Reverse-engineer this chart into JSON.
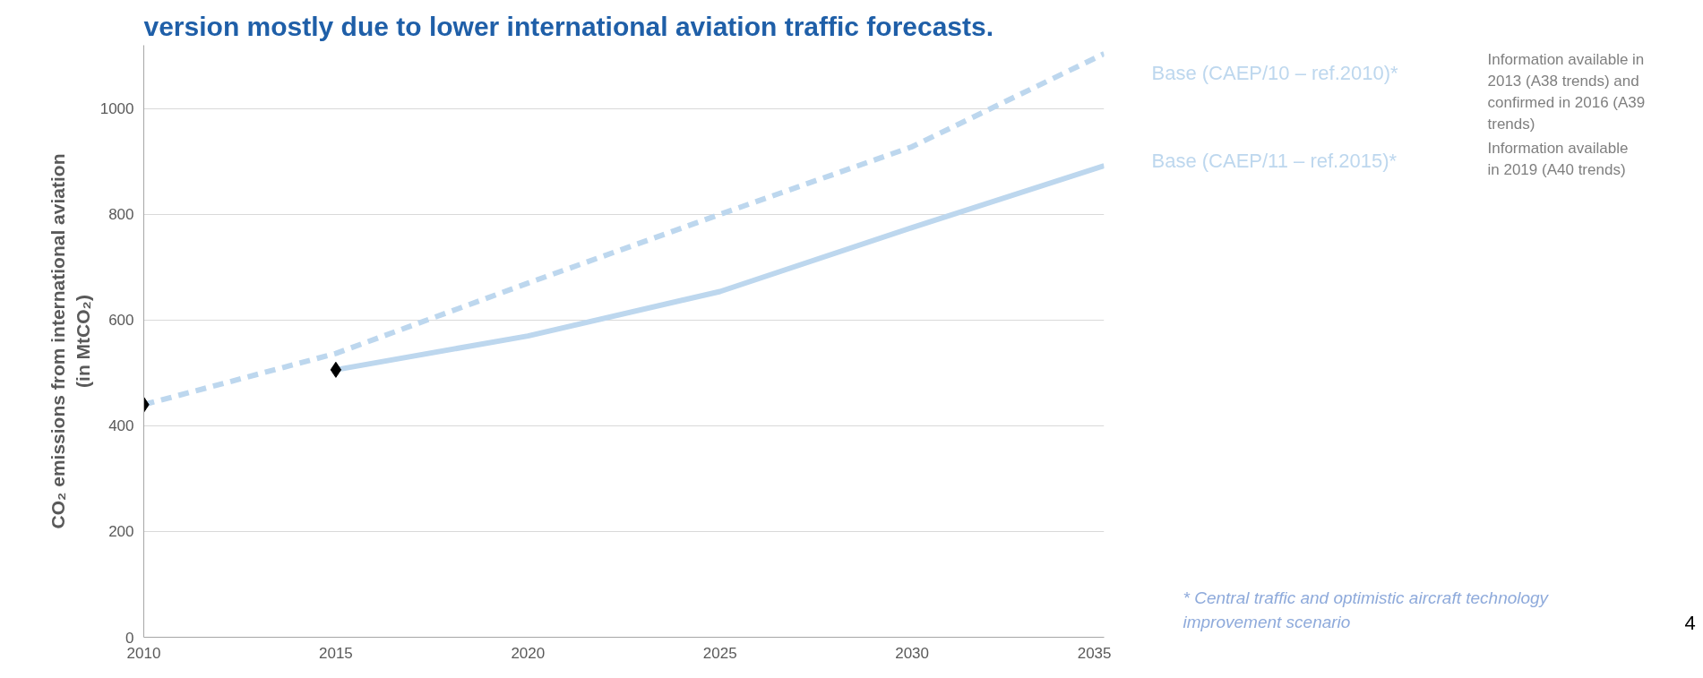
{
  "chart_data": {
    "type": "line",
    "title": "version mostly due to lower international aviation traffic forecasts.",
    "ylabel": "CO₂ emissions from international aviation\n(in MtCO₂)",
    "xlim": [
      2010,
      2035
    ],
    "xticks": [
      2010,
      2015,
      2020,
      2025,
      2030,
      2035
    ],
    "ylim": [
      0,
      1120
    ],
    "yticks": [
      0,
      200,
      400,
      600,
      800,
      1000
    ],
    "grid": "y",
    "series": [
      {
        "name": "Base (CAEP/10 – ref.2010)*",
        "color": "#bdd7ee",
        "line_style": "dashed",
        "x": [
          2010,
          2015,
          2020,
          2025,
          2030,
          2035
        ],
        "values": [
          440,
          537,
          670,
          800,
          928,
          1104
        ]
      },
      {
        "name": "Base (CAEP/11 – ref.2015)*",
        "color": "#bdd7ee",
        "line_style": "solid",
        "x": [
          2015,
          2020,
          2025,
          2030,
          2035
        ],
        "values": [
          506,
          570,
          654,
          775,
          892
        ]
      },
      {
        "type": "scatter",
        "marker": "diamond",
        "color": "#000000",
        "x": [
          2010,
          2015
        ],
        "values": [
          440,
          506
        ]
      }
    ],
    "annotations": [
      "Information available in\n2013 (A38 trends) and\nconfirmed in 2016 (A39\ntrends)",
      "Information available\nin 2019 (A40 trends)",
      "* Central traffic and optimistic aircraft technology\nimprovement scenario",
      "4"
    ]
  }
}
